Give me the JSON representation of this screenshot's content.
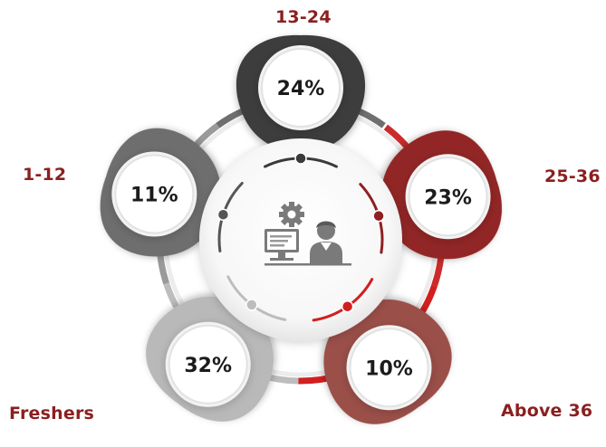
{
  "chart_data": {
    "type": "pie",
    "categories": [
      "13-24",
      "25-36",
      "Above 36",
      "Freshers",
      "1-12"
    ],
    "values": [
      24,
      23,
      10,
      32,
      11
    ],
    "value_labels": [
      "24%",
      "23%",
      "10%",
      "32%",
      "11%"
    ],
    "colors": [
      "#3c3c3c",
      "#922527",
      "#9b4f4a",
      "#b9b9b9",
      "#6e6e6e"
    ],
    "label_colors": [
      "#8b1f1f",
      "#8b1f1f",
      "#8b1f1f",
      "#8b1f1f",
      "#8b1f1f"
    ],
    "center_icon": "employee-at-computer-with-gear-icon"
  }
}
